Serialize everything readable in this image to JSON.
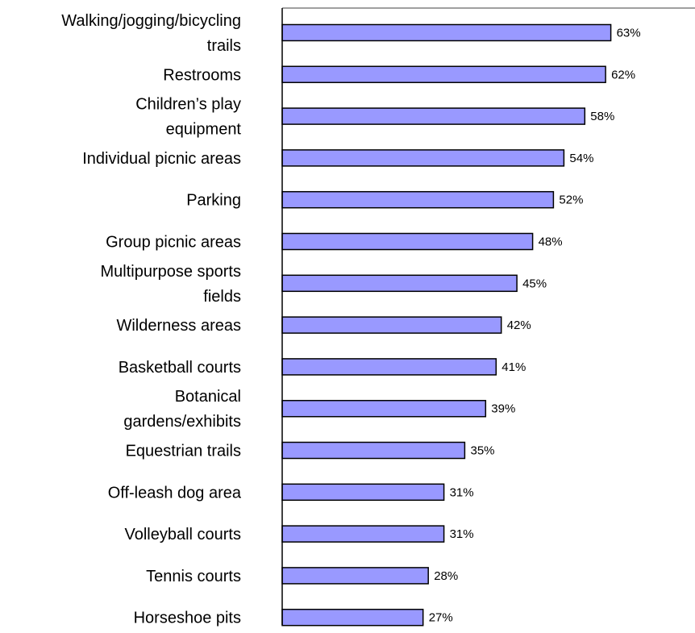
{
  "colors": {
    "bar_fill": "#9999ff",
    "bar_stroke": "#000000",
    "axis": "#808080",
    "text": "#000000",
    "background": "#ffffff"
  },
  "chart_data": {
    "type": "bar",
    "orientation": "horizontal",
    "title": "",
    "xlabel": "",
    "ylabel": "",
    "grid": false,
    "legend": "none",
    "xlim": [
      0,
      65
    ],
    "categories": [
      "Walking/jogging/bicycling trails",
      "Restrooms",
      "Children’s play equipment",
      "Individual picnic areas",
      "Parking",
      "Group picnic areas",
      "Multipurpose sports fields",
      "Wilderness areas",
      "Basketball courts",
      "Botanical gardens/exhibits",
      "Equestrian trails",
      "Off-leash dog area",
      "Volleyball courts",
      "Tennis courts",
      "Horseshoe pits"
    ],
    "category_label_lines": [
      [
        "Walking/jogging/bicycling",
        "trails"
      ],
      [
        "Restrooms"
      ],
      [
        "Children’s play",
        "equipment"
      ],
      [
        "Individual picnic areas"
      ],
      [
        "Parking"
      ],
      [
        "Group picnic areas"
      ],
      [
        "Multipurpose sports",
        "fields"
      ],
      [
        "Wilderness areas"
      ],
      [
        "Basketball courts"
      ],
      [
        "Botanical",
        "gardens/exhibits"
      ],
      [
        "Equestrian trails"
      ],
      [
        "Off-leash dog area"
      ],
      [
        "Volleyball courts"
      ],
      [
        "Tennis courts"
      ],
      [
        "Horseshoe pits"
      ]
    ],
    "values": [
      63,
      62,
      58,
      54,
      52,
      48,
      45,
      42,
      41,
      39,
      35,
      31,
      31,
      28,
      27
    ],
    "value_labels": [
      "63%",
      "62%",
      "58%",
      "54%",
      "52%",
      "48%",
      "45%",
      "42%",
      "41%",
      "39%",
      "35%",
      "31%",
      "31%",
      "28%",
      "27%"
    ]
  }
}
